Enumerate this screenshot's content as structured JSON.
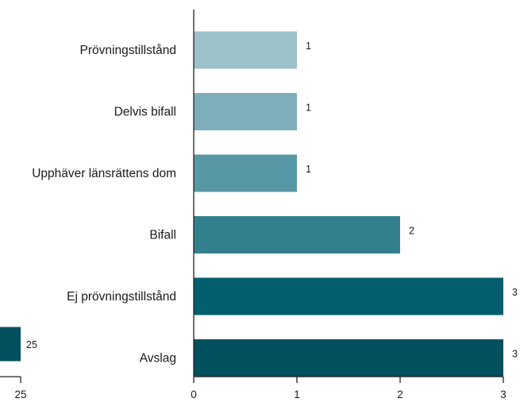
{
  "chart_data": [
    {
      "type": "bar",
      "orientation": "horizontal",
      "partially_visible": true,
      "values": [
        25
      ],
      "data_labels": [
        "25"
      ],
      "x_ticks": [
        "25"
      ],
      "colors": [
        "#03505f"
      ]
    },
    {
      "type": "bar",
      "orientation": "horizontal",
      "categories": [
        "Prövningstillstånd",
        "Delvis bifall",
        "Upphäver länsrättens dom",
        "Bifall",
        "Ej prövningstillstånd",
        "Avslag"
      ],
      "values": [
        1,
        1,
        1,
        2,
        3,
        3
      ],
      "data_labels": [
        "1",
        "1",
        "1",
        "2",
        "3",
        "3"
      ],
      "xlim": [
        0,
        3
      ],
      "x_ticks": [
        "0",
        "1",
        "2",
        "3"
      ],
      "grid": false,
      "colors": [
        "#9dc1ca",
        "#7eaebb",
        "#5898a6",
        "#32808e",
        "#035f6f",
        "#03505f"
      ]
    }
  ]
}
